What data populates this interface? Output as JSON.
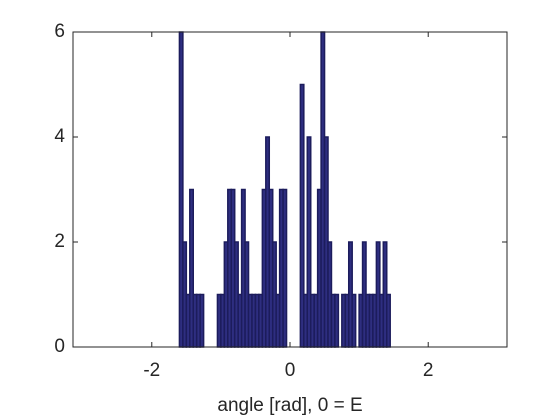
{
  "chart_data": {
    "type": "histogram",
    "xlabel": "angle [rad], 0 = E",
    "bins": [
      -1.6,
      -1.55,
      -1.5,
      -1.45,
      -1.4,
      -1.35,
      -1.3,
      -1.25,
      -1.2,
      -1.15,
      -1.1,
      -1.05,
      -1.0,
      -0.95,
      -0.9,
      -0.85,
      -0.8,
      -0.75,
      -0.7,
      -0.65,
      -0.6,
      -0.55,
      -0.5,
      -0.45,
      -0.4,
      -0.35,
      -0.3,
      -0.25,
      -0.2,
      -0.15,
      -0.1,
      -0.05,
      0.0,
      0.05,
      0.1,
      0.15,
      0.2,
      0.25,
      0.3,
      0.35,
      0.4,
      0.45,
      0.5,
      0.55,
      0.6,
      0.65,
      0.7,
      0.75,
      0.8,
      0.85,
      0.9,
      0.95,
      1.0,
      1.05,
      1.1,
      1.15,
      1.2,
      1.25,
      1.3,
      1.35,
      1.4,
      1.45
    ],
    "values": [
      6,
      2,
      1,
      3,
      1,
      1,
      1,
      0,
      0,
      0,
      0,
      1,
      1,
      2,
      3,
      3,
      2,
      1,
      3,
      2,
      1,
      1,
      1,
      1,
      3,
      4,
      3,
      2,
      1,
      3,
      3,
      0,
      0,
      0,
      0,
      5,
      1,
      4,
      1,
      1,
      3,
      6,
      4,
      2,
      1,
      1,
      0,
      1,
      1,
      2,
      1,
      0,
      1,
      2,
      1,
      1,
      1,
      2,
      1,
      2,
      1
    ],
    "color": "#2e2e80",
    "edgecolor": "#1c1c5c",
    "xlim": [
      -3.14,
      3.14
    ],
    "ylim": [
      0,
      6
    ],
    "xticks": [
      -2,
      0,
      2
    ],
    "yticks": [
      0,
      2,
      4,
      6
    ]
  }
}
